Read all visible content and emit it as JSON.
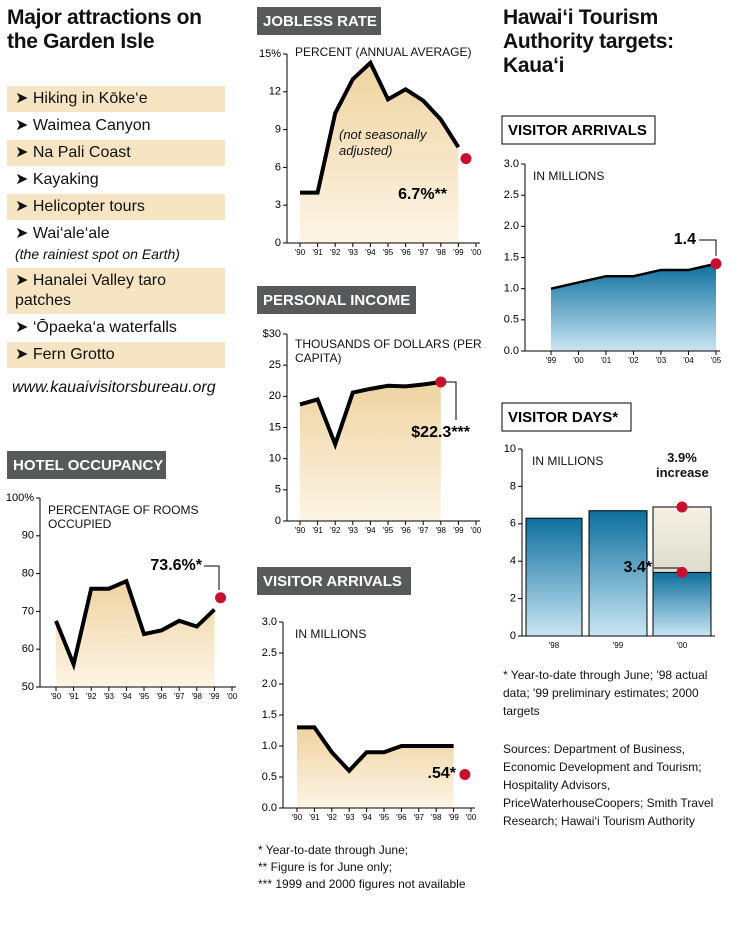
{
  "attractions": {
    "title": "Major attractions on the Garden Isle",
    "items": [
      {
        "text": "Hiking in Kōke‘e",
        "highlight": true
      },
      {
        "text": "Waimea Canyon",
        "highlight": false
      },
      {
        "text": "Na Pali Coast",
        "highlight": true
      },
      {
        "text": "Kayaking",
        "highlight": false
      },
      {
        "text": "Helicopter tours",
        "highlight": true
      },
      {
        "text": "Wai‘ale‘ale",
        "note": "(the rainiest spot on Earth)",
        "highlight": false
      },
      {
        "text": "Hanalei Valley taro patches",
        "highlight": true
      },
      {
        "text": "‘Ōpaeka‘a waterfalls",
        "highlight": false
      },
      {
        "text": "Fern Grotto",
        "highlight": true
      }
    ],
    "url": "www.kauaivisitorsbureau.org"
  },
  "hta": {
    "title": "Hawai‘i Tourism Authority targets: Kaua‘i"
  },
  "notes": {
    "middle": [
      "* Year-to-date through June;",
      "** Figure is for June only;",
      "*** 1999 and 2000 figures not available"
    ],
    "right": "* Year-to-date through June; '98 actual data; '99 preliminary estimates; 2000 targets",
    "sources": "Sources: Department of Business, Economic Development and Tourism; Hospitality Advisors, PriceWaterhouseCoopers; Smith Travel Research; Hawai‘i Tourism Authority"
  },
  "chart_data": [
    {
      "type": "area",
      "title": "HOTEL OCCUPANCY",
      "header_style": "dark",
      "y_label": "PERCENTAGE OF ROOMS OCCUPIED",
      "categories": [
        "'90",
        "'91",
        "'92",
        "'93",
        "'94",
        "'95",
        "'96",
        "'97",
        "'98",
        "'99",
        "'00"
      ],
      "values": [
        67.5,
        56,
        76,
        76,
        78,
        64,
        65,
        67.5,
        66,
        70.5,
        null
      ],
      "highlight": {
        "value": 73.6,
        "label": "73.6%*"
      },
      "ylim": [
        50,
        100
      ],
      "yticks": [
        50,
        60,
        70,
        80,
        90,
        {
          "value": 100,
          "label": "100%"
        }
      ]
    },
    {
      "type": "area",
      "title": "JOBLESS RATE",
      "header_style": "dark",
      "y_label": "PERCENT (ANNUAL AVERAGE)",
      "annotation": "(not seasonally adjusted)",
      "categories": [
        "'90",
        "'91",
        "'92",
        "'93",
        "'94",
        "'95",
        "'96",
        "'97",
        "'98",
        "'99",
        "'00"
      ],
      "values": [
        4,
        4,
        10.3,
        13,
        14.3,
        11.4,
        12.2,
        11.3,
        9.8,
        7.6,
        null
      ],
      "highlight": {
        "value": 6.7,
        "label": "6.7%**"
      },
      "ylim": [
        0,
        15
      ],
      "yticks": [
        0,
        3,
        6,
        9,
        12,
        {
          "value": 15,
          "label": "15%"
        }
      ]
    },
    {
      "type": "area",
      "title": "PERSONAL INCOME",
      "header_style": "dark",
      "y_label": "THOUSANDS OF DOLLARS (PER CAPITA)",
      "categories": [
        "'90",
        "'91",
        "'92",
        "'93",
        "'94",
        "'95",
        "'96",
        "'97",
        "'98",
        "'99",
        "'00"
      ],
      "values": [
        18.7,
        19.5,
        12.3,
        20.6,
        21.2,
        21.7,
        21.6,
        21.9,
        22.3,
        null,
        null
      ],
      "highlight": {
        "value": 22.3,
        "label": "$22.3***"
      },
      "ylim": [
        0,
        30
      ],
      "yticks": [
        0,
        5,
        10,
        15,
        20,
        25,
        {
          "value": 30,
          "label": "$30"
        }
      ]
    },
    {
      "type": "area",
      "title": "VISITOR ARRIVALS",
      "header_style": "dark",
      "y_label": "IN MILLIONS",
      "categories": [
        "'90",
        "'91",
        "'92",
        "'93",
        "'94",
        "'95",
        "'96",
        "'97",
        "'98",
        "'99",
        "'00"
      ],
      "values": [
        1.3,
        1.3,
        0.9,
        0.6,
        0.9,
        0.9,
        1.0,
        1.0,
        1.0,
        1.0,
        null
      ],
      "highlight": {
        "value": 0.54,
        "label": ".54*"
      },
      "ylim": [
        0,
        3
      ],
      "yticks": [
        {
          "value": 0,
          "label": "0.0"
        },
        {
          "value": 0.5,
          "label": "0.5"
        },
        {
          "value": 1,
          "label": "1.0"
        },
        {
          "value": 1.5,
          "label": "1.5"
        },
        {
          "value": 2,
          "label": "2.0"
        },
        {
          "value": 2.5,
          "label": "2.5"
        },
        {
          "value": 3,
          "label": "3.0"
        }
      ]
    },
    {
      "type": "area",
      "title": "VISITOR ARRIVALS",
      "header_style": "outline",
      "y_label": "IN MILLIONS",
      "categories": [
        "'99",
        "'00",
        "'01",
        "'02",
        "'03",
        "'04",
        "'05"
      ],
      "values": [
        1.0,
        1.1,
        1.2,
        1.2,
        1.3,
        1.3,
        1.4
      ],
      "highlight": {
        "value": 1.4,
        "label": "1.4"
      },
      "ylim": [
        0,
        3
      ],
      "yticks": [
        {
          "value": 0,
          "label": "0.0"
        },
        {
          "value": 0.5,
          "label": "0.5"
        },
        {
          "value": 1,
          "label": "1.0"
        },
        {
          "value": 1.5,
          "label": "1.5"
        },
        {
          "value": 2,
          "label": "2.0"
        },
        {
          "value": 2.5,
          "label": "2.5"
        },
        {
          "value": 3,
          "label": "3.0"
        }
      ]
    },
    {
      "type": "bar",
      "title": "VISITOR DAYS*",
      "header_style": "outline",
      "y_label": "IN MILLIONS",
      "categories": [
        "'98",
        "'99",
        "'00"
      ],
      "values": [
        6.3,
        6.7,
        6.9
      ],
      "ytd": {
        "value": 3.4,
        "label": "3.4*"
      },
      "annotation": "3.9% increase",
      "ylim": [
        0,
        10
      ],
      "yticks": [
        0,
        2,
        4,
        6,
        8,
        10
      ]
    }
  ]
}
